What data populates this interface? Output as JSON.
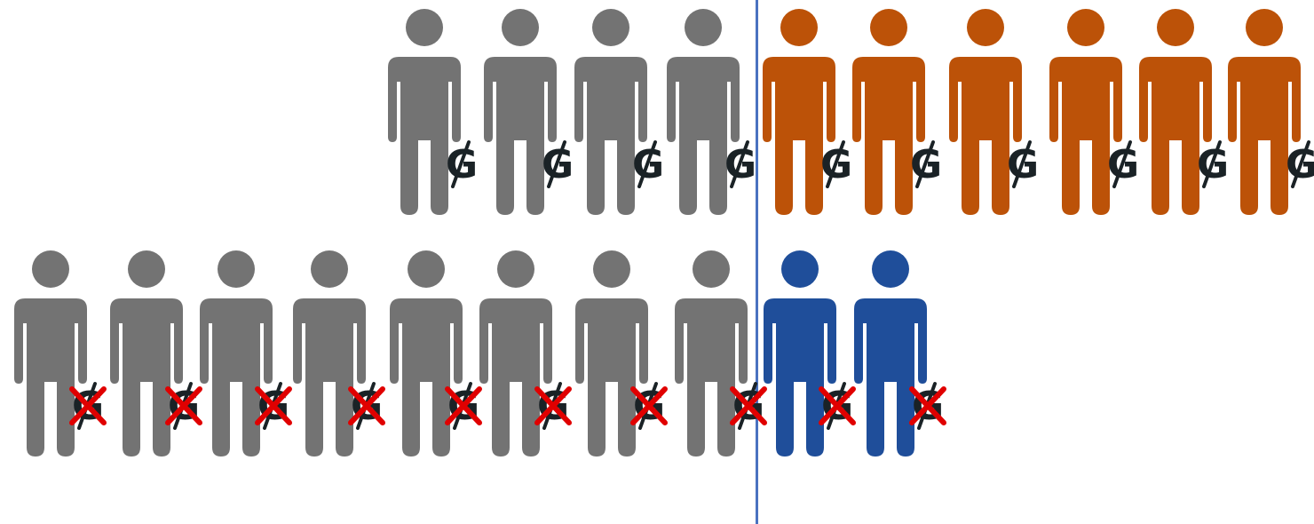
{
  "colors": {
    "grey": "#737373",
    "orange": "#BC5208",
    "blue": "#1F4E9A",
    "divider": "#4A72C0",
    "symbol": "#1A2226",
    "cross": "#E00000"
  },
  "symbol_char": "G",
  "rows": [
    {
      "name": "upper-row",
      "people": [
        {
          "color": "grey",
          "crossed": false
        },
        {
          "color": "grey",
          "crossed": false
        },
        {
          "color": "grey",
          "crossed": false
        },
        {
          "color": "grey",
          "crossed": false
        },
        {
          "color": "orange",
          "crossed": false
        },
        {
          "color": "orange",
          "crossed": false
        },
        {
          "color": "orange",
          "crossed": false
        },
        {
          "color": "orange",
          "crossed": false
        },
        {
          "color": "orange",
          "crossed": false
        },
        {
          "color": "orange",
          "crossed": false
        }
      ]
    },
    {
      "name": "lower-row",
      "people": [
        {
          "color": "grey",
          "crossed": true
        },
        {
          "color": "grey",
          "crossed": true
        },
        {
          "color": "grey",
          "crossed": true
        },
        {
          "color": "grey",
          "crossed": true
        },
        {
          "color": "grey",
          "crossed": true
        },
        {
          "color": "grey",
          "crossed": true
        },
        {
          "color": "grey",
          "crossed": true
        },
        {
          "color": "grey",
          "crossed": true
        },
        {
          "color": "blue",
          "crossed": true
        },
        {
          "color": "blue",
          "crossed": true
        }
      ]
    }
  ]
}
